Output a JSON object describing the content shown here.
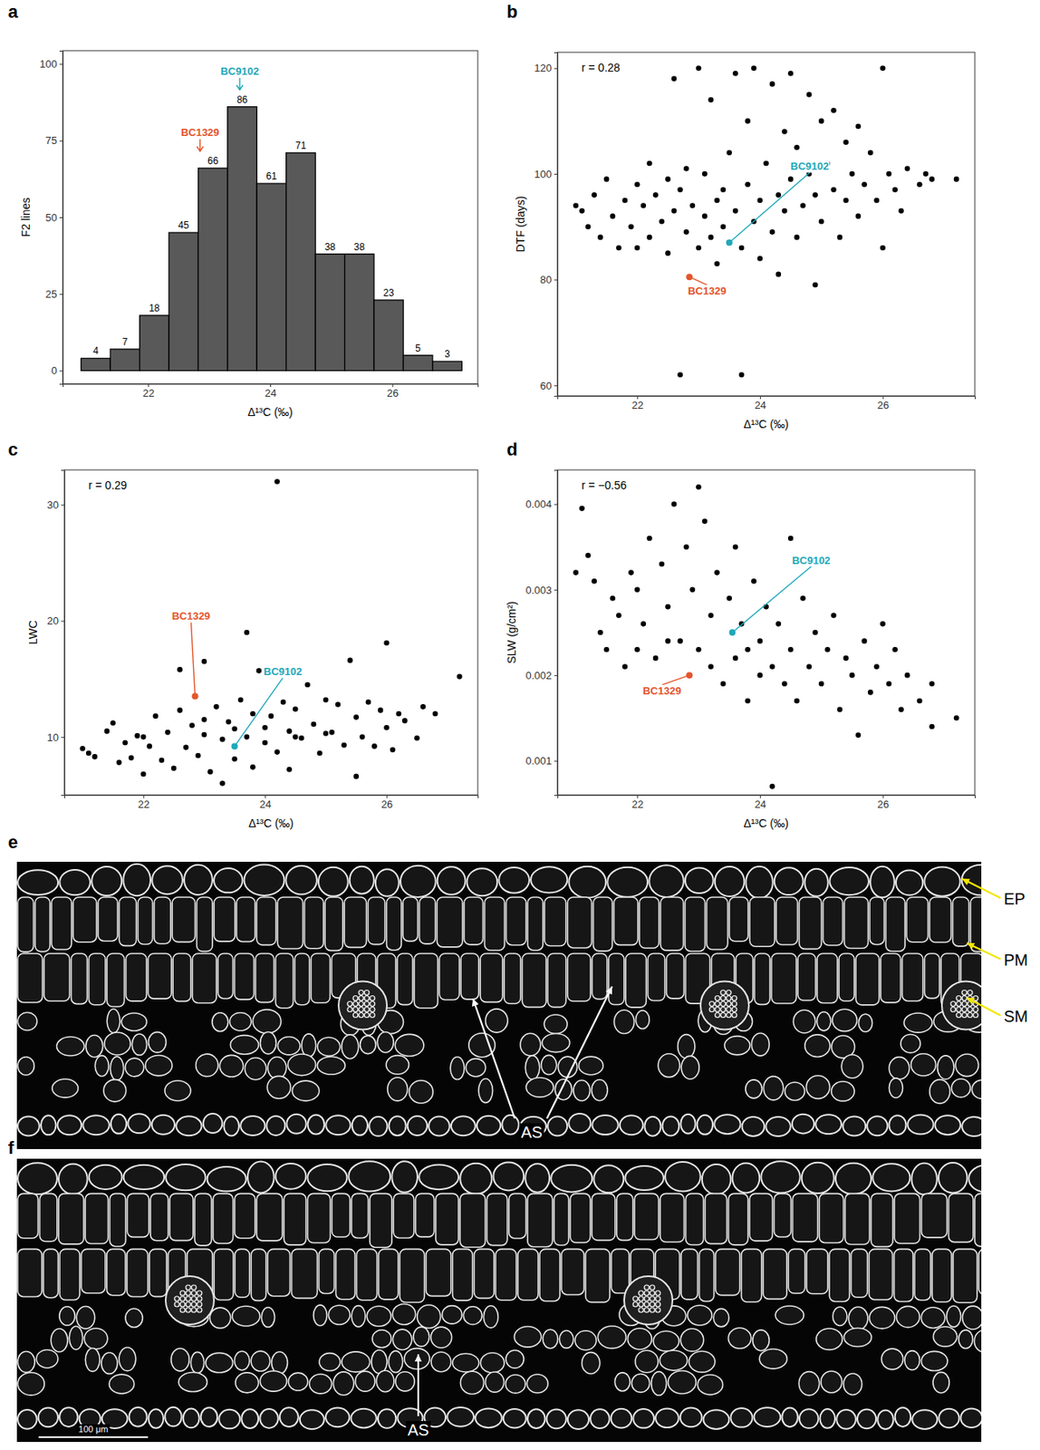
{
  "chart_data": [
    {
      "type": "histogram",
      "panel_label": "a",
      "x_label": "Δ¹³C (‰)",
      "y_label": "F2 lines",
      "bins": [
        20.9,
        21.38,
        21.86,
        22.34,
        22.82,
        23.3,
        23.78,
        24.26,
        24.74,
        25.22,
        25.7,
        26.18,
        26.66,
        27.14
      ],
      "values": [
        4,
        7,
        18,
        45,
        66,
        86,
        61,
        71,
        38,
        38,
        23,
        5,
        3
      ],
      "data_labels": true,
      "color": "#595959",
      "grid": false,
      "xlim": [
        20.6,
        27.4
      ],
      "xticks": [
        22,
        24,
        26
      ],
      "ylim": [
        -4.3,
        104.3
      ],
      "yticks": [
        0,
        25,
        50,
        75,
        100
      ],
      "annotations": [
        {
          "text": "BC9102",
          "x": 23.5,
          "color": "#1fa8b9"
        },
        {
          "text": "BC1329",
          "x": 22.85,
          "color": "#e4552b"
        }
      ]
    },
    {
      "type": "scatter",
      "panel_label": "b",
      "x_label": "Δ¹³C (‰)",
      "y_label": "DTF (days)",
      "color": "#000000",
      "grid": false,
      "x": [
        21.0,
        21.1,
        21.2,
        21.3,
        21.4,
        21.5,
        21.6,
        21.7,
        21.8,
        21.9,
        22.0,
        22.0,
        22.1,
        22.2,
        22.2,
        22.3,
        22.4,
        22.5,
        22.5,
        22.6,
        22.6,
        22.7,
        22.7,
        22.8,
        22.8,
        22.9,
        22.9,
        23.0,
        23.0,
        23.1,
        23.1,
        23.2,
        23.2,
        23.3,
        23.3,
        23.4,
        23.4,
        23.5,
        23.6,
        23.6,
        23.7,
        23.7,
        23.8,
        23.8,
        23.9,
        23.9,
        24.0,
        24.0,
        24.1,
        24.2,
        24.2,
        24.3,
        24.3,
        24.4,
        24.4,
        24.5,
        24.5,
        24.6,
        24.6,
        24.7,
        24.8,
        24.8,
        24.9,
        24.9,
        25.0,
        25.0,
        25.1,
        25.2,
        25.2,
        25.3,
        25.4,
        25.4,
        25.5,
        25.6,
        25.6,
        25.7,
        25.8,
        25.9,
        26.0,
        26.0,
        26.1,
        26.2,
        26.3,
        26.4,
        26.6,
        26.7,
        26.8,
        27.2
      ],
      "values": [
        94,
        93,
        90,
        96,
        88,
        99,
        92,
        86,
        95,
        90,
        98,
        86,
        94,
        102,
        88,
        96,
        91,
        99,
        85,
        118,
        93,
        62,
        97,
        89,
        101,
        78,
        94,
        120,
        86,
        92,
        100,
        114,
        88,
        95,
        83,
        97,
        90,
        104,
        119,
        93,
        62,
        86,
        98,
        110,
        91,
        120,
        95,
        84,
        102,
        89,
        117,
        96,
        81,
        108,
        93,
        119,
        99,
        88,
        105,
        94,
        115,
        100,
        79,
        96,
        110,
        91,
        102,
        97,
        112,
        88,
        106,
        95,
        100,
        109,
        92,
        98,
        104,
        95,
        120,
        86,
        100,
        97,
        93,
        101,
        98,
        100,
        99,
        99
      ],
      "xlim": [
        20.7,
        27.5
      ],
      "xticks": [
        22,
        24,
        26
      ],
      "ylim": [
        58,
        123
      ],
      "yticks": [
        60,
        80,
        100,
        120
      ],
      "annotations": [
        {
          "text": "r = 0.28"
        },
        {
          "text": "BC9102",
          "x": 23.5,
          "y": 87,
          "color": "#1fa8b9"
        },
        {
          "text": "BC1329",
          "x": 22.85,
          "y": 80.5,
          "color": "#e4552b"
        }
      ]
    },
    {
      "type": "scatter",
      "panel_label": "c",
      "x_label": "Δ¹³C (‰)",
      "y_label": "LWC",
      "color": "#000000",
      "grid": false,
      "x": [
        21.0,
        21.1,
        21.2,
        21.4,
        21.5,
        21.6,
        21.7,
        21.8,
        21.9,
        22.0,
        22.0,
        22.1,
        22.2,
        22.3,
        22.4,
        22.5,
        22.6,
        22.6,
        22.7,
        22.8,
        22.9,
        23.0,
        23.0,
        23.0,
        23.1,
        23.2,
        23.3,
        23.3,
        23.4,
        23.5,
        23.5,
        23.6,
        23.7,
        23.7,
        23.8,
        23.8,
        23.9,
        24.0,
        24.0,
        24.1,
        24.2,
        24.2,
        24.3,
        24.4,
        24.4,
        24.5,
        24.5,
        24.6,
        24.7,
        24.8,
        24.9,
        25.0,
        25.0,
        25.1,
        25.2,
        25.3,
        25.4,
        25.5,
        25.5,
        25.6,
        25.7,
        25.8,
        25.9,
        26.0,
        26.0,
        26.1,
        26.2,
        26.3,
        26.5,
        26.6,
        26.8,
        27.2
      ],
      "values": [
        9.0,
        8.6,
        8.3,
        10.5,
        11.2,
        7.8,
        9.5,
        8.2,
        10.1,
        6.8,
        10.0,
        9.2,
        11.8,
        8.0,
        10.4,
        7.3,
        12.3,
        15.8,
        9.1,
        11.0,
        8.4,
        16.5,
        10.2,
        11.5,
        7.0,
        12.6,
        9.8,
        6.0,
        11.3,
        8.1,
        10.7,
        13.2,
        19.0,
        10.0,
        7.4,
        12.0,
        15.7,
        9.5,
        10.8,
        11.8,
        32.0,
        8.7,
        13.0,
        10.5,
        7.2,
        12.4,
        10.0,
        9.9,
        14.5,
        11.1,
        8.6,
        13.2,
        10.3,
        10.4,
        12.8,
        9.3,
        16.6,
        6.6,
        11.7,
        10.0,
        13.0,
        9.2,
        12.3,
        18.1,
        10.8,
        8.9,
        12.0,
        11.4,
        9.9,
        12.6,
        12.0,
        15.2
      ],
      "xlim": [
        20.7,
        27.5
      ],
      "xticks": [
        22,
        24,
        26
      ],
      "ylim": [
        5,
        33
      ],
      "yticks": [
        10,
        20,
        30
      ],
      "annotations": [
        {
          "text": "r = 0.29"
        },
        {
          "text": "BC9102",
          "x": 23.5,
          "y": 9.2,
          "color": "#1fa8b9"
        },
        {
          "text": "BC1329",
          "x": 22.85,
          "y": 13.5,
          "color": "#e4552b"
        }
      ]
    },
    {
      "type": "scatter",
      "panel_label": "d",
      "x_label": "Δ¹³C (‰)",
      "y_label": "SLW (g/cm²)",
      "color": "#000000",
      "grid": false,
      "x": [
        21.0,
        21.1,
        21.2,
        21.3,
        21.4,
        21.5,
        21.6,
        21.7,
        21.8,
        21.9,
        22.0,
        22.0,
        22.1,
        22.2,
        22.3,
        22.4,
        22.5,
        22.5,
        22.6,
        22.7,
        22.8,
        22.9,
        23.0,
        23.0,
        23.1,
        23.2,
        23.2,
        23.3,
        23.4,
        23.5,
        23.6,
        23.6,
        23.7,
        23.8,
        23.8,
        23.9,
        24.0,
        24.0,
        24.1,
        24.2,
        24.2,
        24.3,
        24.4,
        24.5,
        24.5,
        24.6,
        24.7,
        24.8,
        24.9,
        25.0,
        25.1,
        25.2,
        25.3,
        25.4,
        25.5,
        25.6,
        25.7,
        25.8,
        25.9,
        26.0,
        26.1,
        26.2,
        26.3,
        26.4,
        26.6,
        26.8,
        26.8,
        27.2
      ],
      "values": [
        0.0032,
        0.00395,
        0.0034,
        0.0031,
        0.0025,
        0.0023,
        0.0029,
        0.0027,
        0.0021,
        0.0032,
        0.003,
        0.0023,
        0.0026,
        0.0036,
        0.0022,
        0.0033,
        0.0028,
        0.0024,
        0.004,
        0.0024,
        0.0035,
        0.003,
        0.0042,
        0.0023,
        0.0038,
        0.0027,
        0.0021,
        0.0032,
        0.0019,
        0.0029,
        0.0035,
        0.0022,
        0.0026,
        0.0017,
        0.0023,
        0.0031,
        0.0024,
        0.002,
        0.0028,
        0.0007,
        0.0021,
        0.0026,
        0.0019,
        0.0036,
        0.0023,
        0.0017,
        0.0029,
        0.0021,
        0.0025,
        0.0019,
        0.0023,
        0.0027,
        0.0016,
        0.0022,
        0.002,
        0.0013,
        0.0024,
        0.0018,
        0.0021,
        0.0026,
        0.0019,
        0.0023,
        0.0016,
        0.002,
        0.0017,
        0.0019,
        0.0014,
        0.0015
      ],
      "xlim": [
        20.7,
        27.5
      ],
      "xticks": [
        22,
        24,
        26
      ],
      "ylim": [
        0.0006,
        0.0044
      ],
      "yticks": [
        0.001,
        0.002,
        0.003,
        0.004
      ],
      "annotations": [
        {
          "text": "r = −0.56"
        },
        {
          "text": "BC9102",
          "x": 23.55,
          "y": 0.0025,
          "color": "#1fa8b9"
        },
        {
          "text": "BC1329",
          "x": 22.85,
          "y": 0.002,
          "color": "#e4552b"
        }
      ]
    }
  ],
  "images": [
    {
      "panel_label": "e",
      "labels": [
        "EP",
        "PM",
        "SM"
      ],
      "annotation": "AS"
    },
    {
      "panel_label": "f",
      "annotation": "AS",
      "scale_bar": "100 μm"
    }
  ]
}
